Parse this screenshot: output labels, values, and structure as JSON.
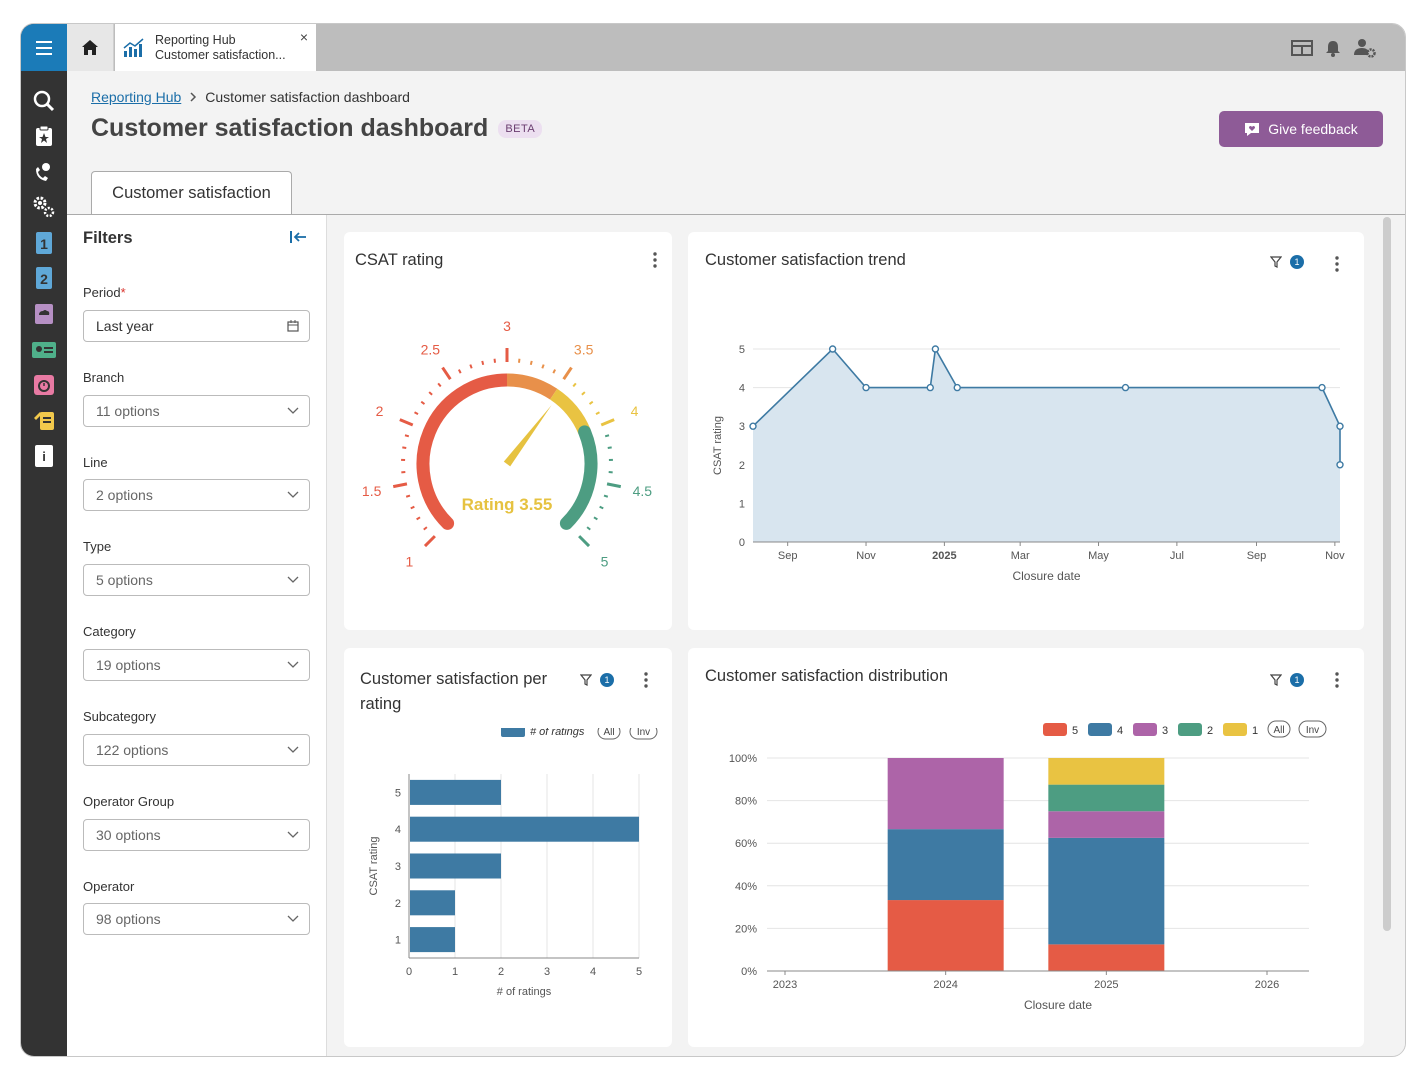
{
  "tab": {
    "line1": "Reporting Hub",
    "line2": "Customer satisfaction...",
    "close": "×"
  },
  "breadcrumb": {
    "parent": "Reporting Hub",
    "current": "Customer satisfaction dashboard"
  },
  "page": {
    "title": "Customer satisfaction dashboard",
    "badge": "BETA",
    "feedback_label": "Give feedback",
    "tab_label": "Customer satisfaction"
  },
  "filters": {
    "title": "Filters",
    "fields": [
      {
        "label": "Period",
        "required": true,
        "value": "Last year"
      },
      {
        "label": "Branch",
        "value": "11 options"
      },
      {
        "label": "Line",
        "value": "2 options"
      },
      {
        "label": "Type",
        "value": "5 options"
      },
      {
        "label": "Category",
        "value": "19 options"
      },
      {
        "label": "Subcategory",
        "value": "122 options"
      },
      {
        "label": "Operator Group",
        "value": "30 options"
      },
      {
        "label": "Operator",
        "value": "98 options"
      }
    ]
  },
  "panels": {
    "csat": {
      "title": "CSAT rating"
    },
    "trend": {
      "title": "Customer satisfaction trend",
      "filter_count": "1"
    },
    "per_rating": {
      "title_line1": "Customer satisfaction per",
      "title_line2": "rating",
      "filter_count": "1"
    },
    "distribution": {
      "title": "Customer satisfaction distribution",
      "filter_count": "1"
    }
  },
  "colors": {
    "brand": "#1b7bb8",
    "feedback": "#8e5b97",
    "series": "#3e7aa3"
  },
  "chart_data": [
    {
      "type": "gauge",
      "value": 3.55,
      "value_label": "Rating 3.55",
      "min": 1,
      "max": 5,
      "ticks": [
        "1",
        "1.5",
        "2",
        "2.5",
        "3",
        "3.5",
        "4",
        "4.5",
        "5"
      ],
      "bands": [
        {
          "from": 1,
          "to": 3,
          "color": "#e55b45"
        },
        {
          "from": 3,
          "to": 3.5,
          "color": "#e8904a"
        },
        {
          "from": 3.5,
          "to": 4,
          "color": "#e9c342"
        },
        {
          "from": 4,
          "to": 5,
          "color": "#4d9d82"
        }
      ]
    },
    {
      "type": "area",
      "xlabel": "Closure date",
      "ylabel": "CSAT rating",
      "ylim": [
        0,
        5
      ],
      "y_ticks": [
        "0",
        "1",
        "2",
        "3",
        "4",
        "5"
      ],
      "x_ticks": [
        "Sep",
        "Nov",
        "2025",
        "Mar",
        "May",
        "Jul",
        "Sep",
        "Nov"
      ],
      "points": [
        {
          "x": "2024-08-05",
          "y": 3
        },
        {
          "x": "2024-10-06",
          "y": 5
        },
        {
          "x": "2024-11-01",
          "y": 4
        },
        {
          "x": "2024-12-21",
          "y": 4
        },
        {
          "x": "2024-12-25",
          "y": 5
        },
        {
          "x": "2025-01-11",
          "y": 4
        },
        {
          "x": "2025-05-22",
          "y": 4
        },
        {
          "x": "2025-10-22",
          "y": 4
        },
        {
          "x": "2025-11-05",
          "y": 3
        },
        {
          "x": "2025-11-05",
          "y": 2
        }
      ]
    },
    {
      "type": "bar",
      "orientation": "horizontal",
      "categories": [
        "5",
        "4",
        "3",
        "2",
        "1"
      ],
      "values": [
        2,
        5,
        2,
        1,
        1
      ],
      "xlabel": "# of ratings",
      "ylabel": "CSAT rating",
      "xlim": [
        0,
        5
      ],
      "x_ticks": [
        "0",
        "1",
        "2",
        "3",
        "4",
        "5"
      ],
      "legend": [
        "# of ratings"
      ],
      "legend_buttons": [
        "All",
        "Inv"
      ]
    },
    {
      "type": "bar",
      "stacked": true,
      "percent": true,
      "xlabel": "Closure date",
      "categories": [
        "2023",
        "2024",
        "2025",
        "2026"
      ],
      "y_ticks": [
        "0%",
        "20%",
        "40%",
        "60%",
        "80%",
        "100%"
      ],
      "legend_buttons": [
        "All",
        "Inv"
      ],
      "series": [
        {
          "name": "5",
          "color": "#e55b45",
          "values": [
            0,
            33.3,
            12.5,
            0
          ]
        },
        {
          "name": "4",
          "color": "#3e7aa3",
          "values": [
            0,
            33.3,
            50,
            0
          ]
        },
        {
          "name": "3",
          "color": "#ad64a8",
          "values": [
            0,
            33.4,
            12.5,
            0
          ]
        },
        {
          "name": "2",
          "color": "#4d9d82",
          "values": [
            0,
            0,
            12.5,
            0
          ]
        },
        {
          "name": "1",
          "color": "#e9c342",
          "values": [
            0,
            0,
            12.5,
            0
          ]
        }
      ]
    }
  ]
}
